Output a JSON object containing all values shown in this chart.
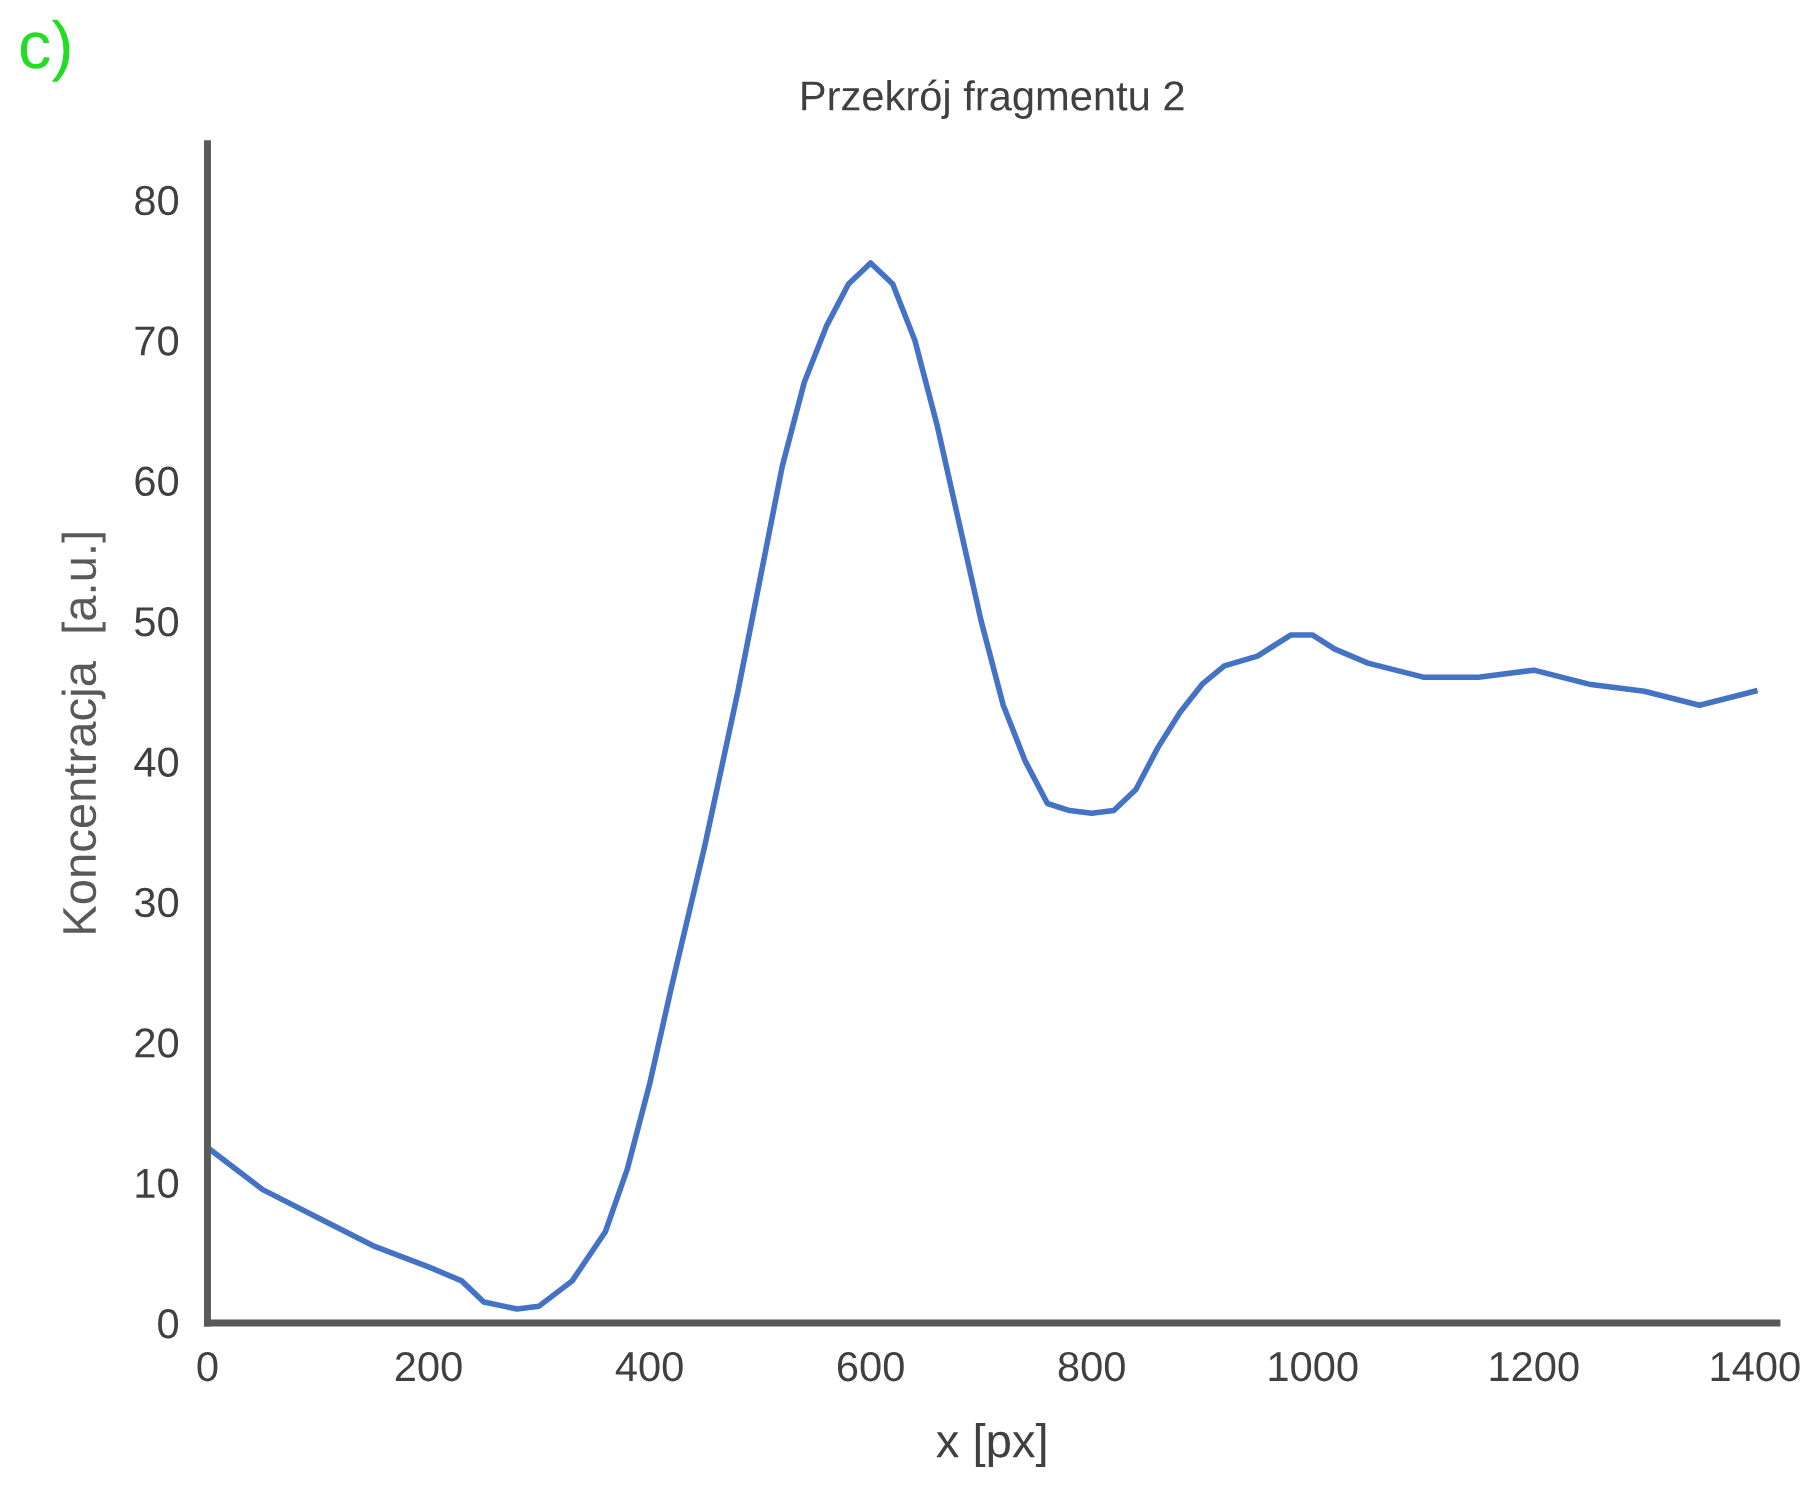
{
  "chart_data": {
    "type": "line",
    "title": "Przekrój fragmentu 2",
    "xlabel": "x [px]",
    "ylabel": "Koncentracja  [a.u.]",
    "annotations": [
      "c)"
    ],
    "x": [
      0,
      50,
      100,
      150,
      200,
      230,
      250,
      280,
      300,
      330,
      360,
      380,
      400,
      420,
      450,
      480,
      500,
      520,
      540,
      560,
      580,
      600,
      620,
      640,
      660,
      680,
      700,
      720,
      740,
      760,
      780,
      800,
      820,
      840,
      860,
      880,
      900,
      920,
      950,
      980,
      1000,
      1020,
      1050,
      1100,
      1150,
      1200,
      1250,
      1300,
      1350,
      1400
    ],
    "series": [
      {
        "color": "#4472c4",
        "values": [
          12.5,
          9.5,
          7.5,
          5.5,
          4,
          3,
          1.5,
          1,
          1.2,
          3,
          6.5,
          11,
          17,
          24,
          34,
          45,
          53,
          61,
          67,
          71,
          74,
          75.5,
          74,
          70,
          64,
          57,
          50,
          44,
          40,
          37,
          36.5,
          36.3,
          36.5,
          38,
          41,
          43.5,
          45.5,
          46.8,
          47.5,
          49,
          49,
          48,
          47,
          46,
          46,
          46.5,
          45.5,
          45,
          44,
          45
        ]
      }
    ],
    "xlim": [
      0,
      1420
    ],
    "xticks": [
      0,
      200,
      400,
      600,
      800,
      1000,
      1200,
      1400
    ],
    "ylim": [
      0,
      84
    ],
    "yticks": [
      0,
      10,
      20,
      30,
      40,
      50,
      60,
      70,
      80
    ],
    "grid": false,
    "legend": false
  }
}
